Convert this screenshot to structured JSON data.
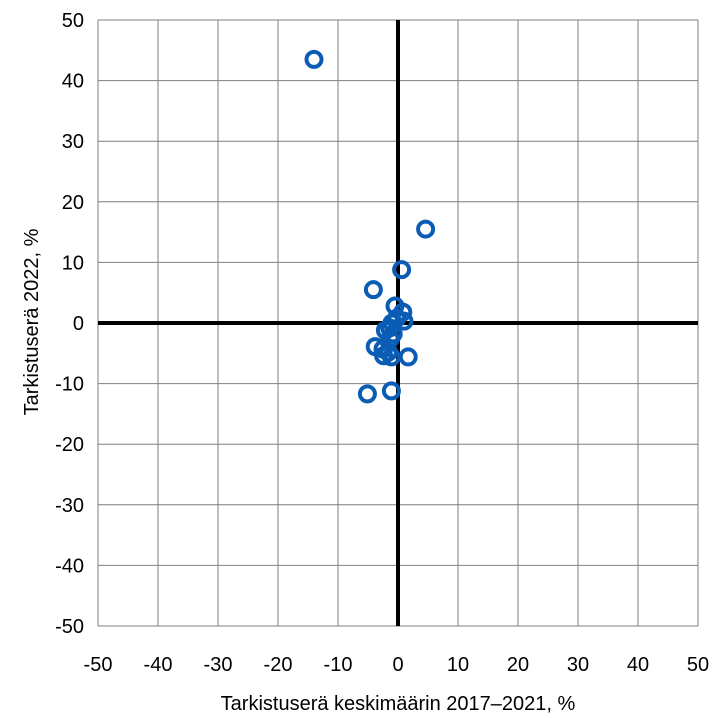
{
  "chart_data": {
    "type": "scatter",
    "xlabel": "Tarkistuserä keskimäärin 2017–2021, %",
    "ylabel": "Tarkistuserä 2022, %",
    "xlim": [
      -50,
      50
    ],
    "ylim": [
      -50,
      50
    ],
    "x_ticks": [
      -50,
      -40,
      -30,
      -20,
      -10,
      0,
      10,
      20,
      30,
      40,
      50
    ],
    "y_ticks": [
      50,
      40,
      30,
      20,
      10,
      0,
      -10,
      -20,
      -30,
      -40,
      -50
    ],
    "grid": true,
    "marker": "hollow-circle",
    "colors": {
      "marker": "#0a5cb4",
      "grid": "#7f7f7f",
      "zero_axes": "#000000"
    },
    "points": [
      {
        "x": -14,
        "y": 43.5
      },
      {
        "x": 4.6,
        "y": 15.5
      },
      {
        "x": 0.6,
        "y": 8.8
      },
      {
        "x": -4.1,
        "y": 5.5
      },
      {
        "x": -0.5,
        "y": 2.8
      },
      {
        "x": 0.8,
        "y": 1.8
      },
      {
        "x": -0.2,
        "y": 0.8
      },
      {
        "x": 1.0,
        "y": 0.3
      },
      {
        "x": -1.0,
        "y": 0.0
      },
      {
        "x": -1.4,
        "y": -0.8
      },
      {
        "x": -2.1,
        "y": -1.2
      },
      {
        "x": -0.8,
        "y": -1.8
      },
      {
        "x": -1.3,
        "y": -2.6
      },
      {
        "x": -3.8,
        "y": -3.9
      },
      {
        "x": -2.5,
        "y": -4.3
      },
      {
        "x": -1.6,
        "y": -4.8
      },
      {
        "x": -2.4,
        "y": -5.4
      },
      {
        "x": -1.1,
        "y": -5.6
      },
      {
        "x": 1.7,
        "y": -5.6
      },
      {
        "x": -5.1,
        "y": -11.7
      },
      {
        "x": -1.1,
        "y": -11.2
      }
    ]
  }
}
